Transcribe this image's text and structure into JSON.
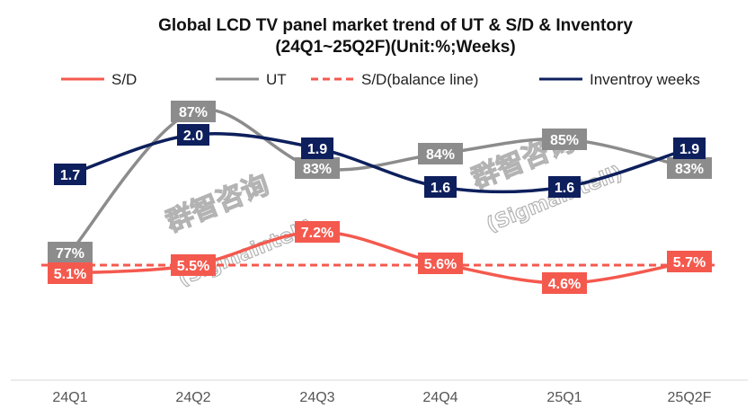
{
  "chart_data": {
    "type": "line",
    "title": "Global LCD TV panel market trend of UT & S/D & Inventory",
    "subtitle": "(24Q1~25Q2F)(Unit:%;Weeks)",
    "categories": [
      "24Q1",
      "24Q2",
      "24Q3",
      "24Q4",
      "25Q1",
      "25Q2F"
    ],
    "series": [
      {
        "name": "S/D",
        "values": [
          5.1,
          5.5,
          7.2,
          5.6,
          4.6,
          5.7
        ],
        "labels": [
          "5.1%",
          "5.5%",
          "7.2%",
          "5.6%",
          "4.6%",
          "5.7%"
        ],
        "color": "#f4594e"
      },
      {
        "name": "UT",
        "values": [
          77,
          87,
          83,
          84,
          85,
          83
        ],
        "labels": [
          "77%",
          "87%",
          "83%",
          "84%",
          "85%",
          "83%"
        ],
        "color": "#8c8c8c"
      },
      {
        "name": "S/D(balance line)",
        "values": [
          5.5,
          5.5,
          5.5,
          5.5,
          5.5,
          5.5
        ],
        "color": "#f4594e",
        "dashed": true
      },
      {
        "name": "Inventroy weeks",
        "values": [
          1.7,
          2.0,
          1.9,
          1.6,
          1.6,
          1.9
        ],
        "labels": [
          "1.7",
          "2.0",
          "1.9",
          "1.6",
          "1.6",
          "1.9"
        ],
        "color": "#0d1f5c"
      }
    ],
    "legend_position": "top",
    "grid": false,
    "watermark": [
      "群智咨询",
      "(Sigmaintell)"
    ]
  }
}
